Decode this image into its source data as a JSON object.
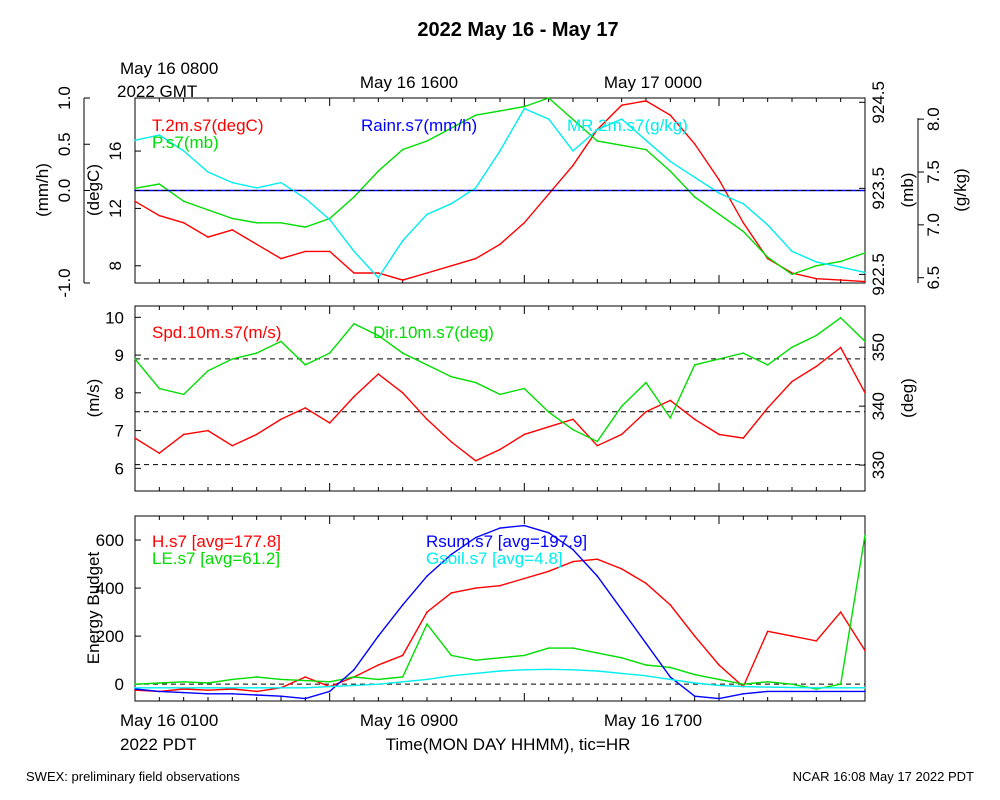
{
  "title": "2022 May 16 - May 17",
  "top_time": {
    "gmt_start_line1": "May 16 0800",
    "gmt_start_line2": "2022 GMT",
    "tick2": "May 16 1600",
    "tick3": "May 17 0000"
  },
  "bottom_time": {
    "start_line1": "May 16 0100",
    "start_line2": "2022 PDT",
    "tick2": "May 16 0900",
    "tick3": "May 16 1700",
    "xlabel": "Time(MON DAY HHMM), tic=HR"
  },
  "footer": {
    "left": "SWEX: preliminary field observations",
    "right": "NCAR 16:08 May 17 2022 PDT"
  },
  "colors": {
    "red": "#ff0000",
    "green": "#00dd00",
    "blue": "#0000ff",
    "cyan": "#00eeee"
  },
  "chart_data": [
    {
      "type": "line",
      "panel": "top",
      "x_unit": "hours since May 16 0100 PDT",
      "xlim": [
        0,
        30
      ],
      "axes": {
        "left_outer": {
          "label": "(mm/h)",
          "ticks": [
            "-1.0",
            "0.0",
            "0.5",
            "1.0"
          ],
          "tick_values": [
            -1.0,
            0.0,
            0.5,
            1.0
          ],
          "ylim": [
            -1.0,
            1.0
          ]
        },
        "left_inner": {
          "label": "(degC)",
          "ticks": [
            "8",
            "12",
            "16"
          ],
          "tick_values": [
            8,
            12,
            16
          ],
          "ylim": [
            6.8,
            19.7
          ]
        },
        "right_inner": {
          "label": "(mb)",
          "ticks": [
            "922.5",
            "923.5",
            "924.5"
          ],
          "tick_values": [
            922.5,
            923.5,
            924.5
          ],
          "ylim": [
            922.4,
            924.55
          ]
        },
        "right_outer": {
          "label": "(g/kg)",
          "ticks": [
            "6.5",
            "7.0",
            "7.5",
            "8.0"
          ],
          "tick_values": [
            6.5,
            7.0,
            7.5,
            8.0
          ],
          "ylim": [
            6.45,
            8.2
          ]
        }
      },
      "series": [
        {
          "name": "T.2m.s7(degC)",
          "color": "red",
          "axis": "left_inner",
          "x": [
            0,
            1,
            2,
            3,
            4,
            5,
            6,
            7,
            8,
            9,
            10,
            11,
            12,
            13,
            14,
            15,
            16,
            17,
            18,
            19,
            20,
            21,
            22,
            23,
            24,
            25,
            26,
            27,
            28,
            29,
            30
          ],
          "values": [
            12.5,
            11.5,
            11.0,
            10.0,
            10.5,
            9.5,
            8.5,
            9.0,
            9.0,
            7.5,
            7.5,
            7.0,
            7.5,
            8.0,
            8.5,
            9.5,
            11.0,
            13.0,
            15.0,
            17.5,
            19.2,
            19.5,
            18.5,
            16.5,
            14.0,
            11.0,
            8.5,
            7.5,
            7.1,
            7.0,
            6.9
          ]
        },
        {
          "name": "P.s7(mb)",
          "color": "green",
          "axis": "right_inner",
          "x": [
            0,
            1,
            2,
            3,
            4,
            5,
            6,
            7,
            8,
            9,
            10,
            11,
            12,
            13,
            14,
            15,
            16,
            17,
            18,
            19,
            20,
            21,
            22,
            23,
            24,
            25,
            26,
            27,
            28,
            29,
            30
          ],
          "values": [
            923.5,
            923.55,
            923.35,
            923.25,
            923.15,
            923.1,
            923.1,
            923.05,
            923.15,
            923.4,
            923.7,
            923.95,
            924.05,
            924.2,
            924.35,
            924.4,
            924.45,
            924.6,
            924.3,
            924.05,
            924.0,
            923.95,
            923.7,
            923.4,
            923.2,
            923.0,
            922.7,
            922.5,
            922.6,
            922.65,
            922.75
          ]
        },
        {
          "name": "Rainr.s7(mm/h)",
          "color": "blue",
          "axis": "left_outer",
          "x": [
            0,
            30
          ],
          "values": [
            0,
            0
          ]
        },
        {
          "name": "MR.2m.s7(g/kg)",
          "color": "cyan",
          "axis": "right_outer",
          "x": [
            0,
            1,
            2,
            3,
            4,
            5,
            6,
            7,
            8,
            9,
            10,
            11,
            12,
            13,
            14,
            15,
            16,
            17,
            18,
            19,
            20,
            21,
            22,
            23,
            24,
            25,
            26,
            27,
            28,
            29,
            30
          ],
          "values": [
            7.8,
            7.85,
            7.7,
            7.5,
            7.4,
            7.35,
            7.4,
            7.25,
            7.05,
            6.75,
            6.5,
            6.85,
            7.1,
            7.2,
            7.35,
            7.7,
            8.1,
            8.0,
            7.7,
            7.9,
            8.0,
            7.8,
            7.6,
            7.45,
            7.3,
            7.2,
            7.0,
            6.75,
            6.65,
            6.6,
            6.55
          ]
        }
      ]
    },
    {
      "type": "line",
      "panel": "middle",
      "x_unit": "hours since May 16 0100 PDT",
      "xlim": [
        0,
        30
      ],
      "axes": {
        "left": {
          "label": "(m/s)",
          "ticks": [
            "6",
            "7",
            "8",
            "9",
            "10"
          ],
          "tick_values": [
            6,
            7,
            8,
            9,
            10
          ],
          "ylim": [
            5.4,
            10.3
          ]
        },
        "right": {
          "label": "(deg)",
          "ticks": [
            "330",
            "340",
            "350"
          ],
          "tick_values": [
            330,
            340,
            350
          ],
          "ylim": [
            325.6,
            357.0
          ]
        }
      },
      "reference_lines_left": [
        6.1,
        7.5,
        8.9
      ],
      "series": [
        {
          "name": "Spd.10m.s7(m/s)",
          "color": "red",
          "axis": "left",
          "x": [
            0,
            1,
            2,
            3,
            4,
            5,
            6,
            7,
            8,
            9,
            10,
            11,
            12,
            13,
            14,
            15,
            16,
            17,
            18,
            19,
            20,
            21,
            22,
            23,
            24,
            25,
            26,
            27,
            28,
            29,
            30
          ],
          "values": [
            6.8,
            6.4,
            6.9,
            7.0,
            6.6,
            6.9,
            7.3,
            7.6,
            7.2,
            7.9,
            8.5,
            8.0,
            7.3,
            6.7,
            6.2,
            6.5,
            6.9,
            7.1,
            7.3,
            6.6,
            6.9,
            7.5,
            7.8,
            7.3,
            6.9,
            6.8,
            7.6,
            8.3,
            8.7,
            9.2,
            8.0
          ]
        },
        {
          "name": "Dir.10m.s7(deg)",
          "color": "green",
          "axis": "right",
          "x": [
            0,
            1,
            2,
            3,
            4,
            5,
            6,
            7,
            8,
            9,
            10,
            11,
            12,
            13,
            14,
            15,
            16,
            17,
            18,
            19,
            20,
            21,
            22,
            23,
            24,
            25,
            26,
            27,
            28,
            29,
            30
          ],
          "values": [
            348,
            343,
            342,
            346,
            348,
            349,
            351,
            347,
            349,
            354,
            352,
            349,
            347,
            345,
            344,
            342,
            343,
            339,
            336,
            334,
            340,
            344,
            338,
            347,
            348,
            349,
            347,
            350,
            352,
            355,
            351
          ]
        }
      ]
    },
    {
      "type": "line",
      "panel": "bottom",
      "ylabel": "Energy Budget",
      "x_unit": "hours since May 16 0100 PDT",
      "xlim": [
        0,
        30
      ],
      "ylim": [
        -70,
        700
      ],
      "yticks": [
        "0",
        "200",
        "400",
        "600"
      ],
      "ytick_values": [
        0,
        200,
        400,
        600
      ],
      "reference_line": 0,
      "series": [
        {
          "name": "H.s7 [avg=177.8]",
          "color": "red",
          "x": [
            0,
            1,
            2,
            3,
            4,
            5,
            6,
            7,
            8,
            9,
            10,
            11,
            12,
            13,
            14,
            15,
            16,
            17,
            18,
            19,
            20,
            21,
            22,
            23,
            24,
            25,
            26,
            27,
            28,
            29,
            30
          ],
          "values": [
            -25,
            -30,
            -20,
            -25,
            -20,
            -30,
            -15,
            30,
            -10,
            30,
            80,
            120,
            300,
            380,
            400,
            410,
            440,
            470,
            510,
            520,
            480,
            420,
            330,
            200,
            80,
            -10,
            220,
            200,
            180,
            300,
            140
          ]
        },
        {
          "name": "LE.s7 [avg=61.2]",
          "color": "green",
          "x": [
            0,
            1,
            2,
            3,
            4,
            5,
            6,
            7,
            8,
            9,
            10,
            11,
            12,
            13,
            14,
            15,
            16,
            17,
            18,
            19,
            20,
            21,
            22,
            23,
            24,
            25,
            26,
            27,
            28,
            29,
            30
          ],
          "values": [
            0,
            5,
            10,
            5,
            20,
            30,
            20,
            15,
            10,
            30,
            20,
            30,
            250,
            120,
            100,
            110,
            120,
            150,
            150,
            130,
            110,
            80,
            70,
            40,
            20,
            0,
            10,
            0,
            -20,
            0,
            620
          ]
        },
        {
          "name": "Rsum.s7 [avg=197.9]",
          "color": "blue",
          "x": [
            0,
            1,
            2,
            3,
            4,
            5,
            6,
            7,
            8,
            9,
            10,
            11,
            12,
            13,
            14,
            15,
            16,
            17,
            18,
            19,
            20,
            21,
            22,
            23,
            24,
            25,
            26,
            27,
            28,
            29,
            30
          ],
          "values": [
            -20,
            -30,
            -35,
            -40,
            -40,
            -45,
            -50,
            -60,
            -30,
            60,
            200,
            330,
            450,
            540,
            610,
            650,
            660,
            630,
            560,
            450,
            310,
            170,
            30,
            -50,
            -60,
            -40,
            -30,
            -30,
            -30,
            -30,
            -30
          ]
        },
        {
          "name": "Gsoil.s7 [avg=4.8]",
          "color": "cyan",
          "x": [
            0,
            1,
            2,
            3,
            4,
            5,
            6,
            7,
            8,
            9,
            10,
            11,
            12,
            13,
            14,
            15,
            16,
            17,
            18,
            19,
            20,
            21,
            22,
            23,
            24,
            25,
            26,
            27,
            28,
            29,
            30
          ],
          "values": [
            -15,
            -15,
            -15,
            -15,
            -15,
            -15,
            -15,
            -15,
            -10,
            -5,
            0,
            10,
            20,
            35,
            45,
            55,
            60,
            62,
            60,
            55,
            45,
            35,
            20,
            5,
            -5,
            -10,
            -12,
            -14,
            -15,
            -15,
            -15
          ]
        }
      ]
    }
  ]
}
